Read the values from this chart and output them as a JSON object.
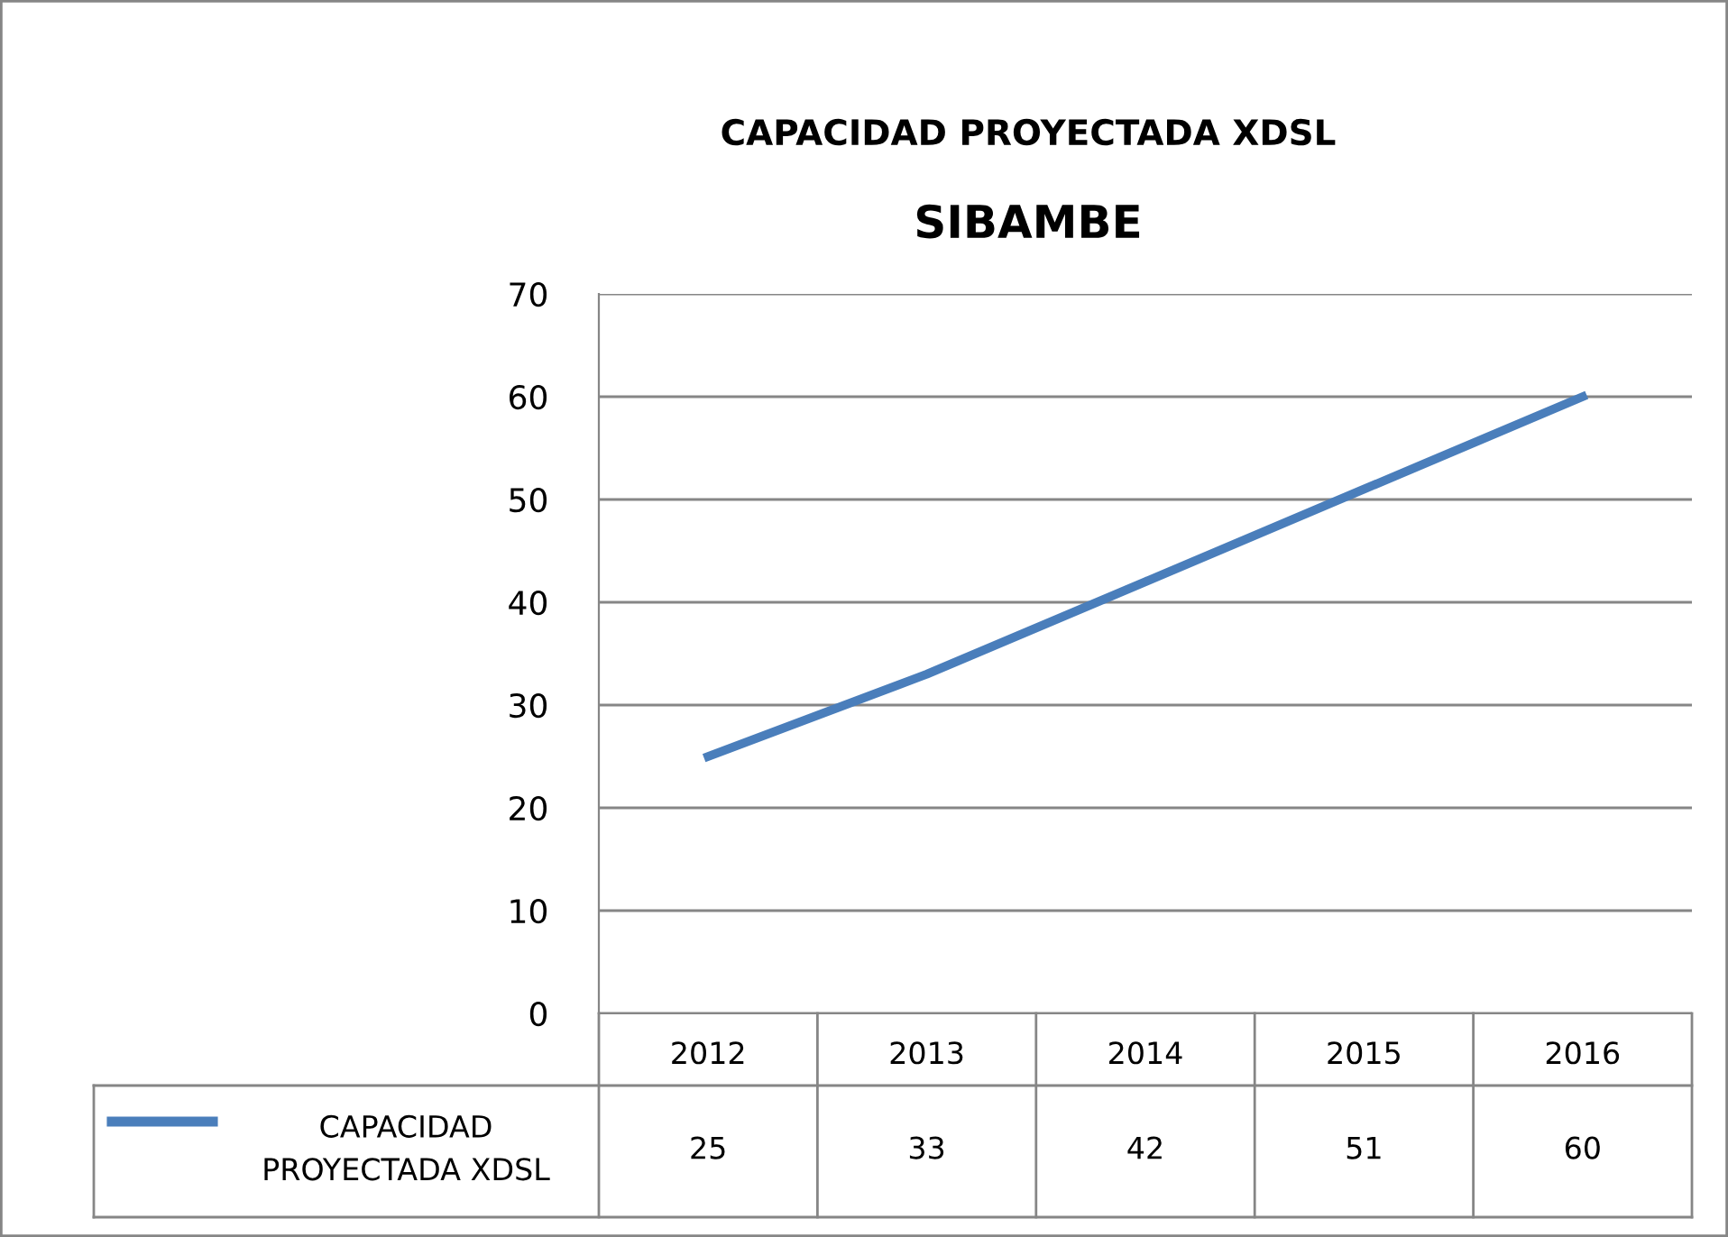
{
  "chart_data": {
    "type": "line",
    "title": "CAPACIDAD PROYECTADA XDSL",
    "subtitle": "SIBAMBE",
    "categories": [
      "2012",
      "2013",
      "2014",
      "2015",
      "2016"
    ],
    "series": [
      {
        "name": "CAPACIDAD PROYECTADA XDSL",
        "color": "#4a7ebb",
        "values": [
          25,
          33,
          42,
          51,
          60
        ]
      }
    ],
    "ylim": [
      0,
      70
    ],
    "yticks": [
      0,
      10,
      20,
      30,
      40,
      50,
      60,
      70
    ],
    "grid": "y",
    "legend": "bottom",
    "data_labels": true,
    "marker": "none",
    "line_style": "solid"
  }
}
